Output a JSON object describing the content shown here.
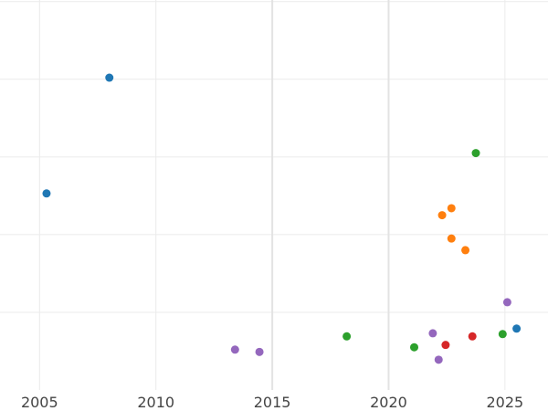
{
  "chart_data": {
    "type": "scatter",
    "title": "",
    "xlabel": "",
    "ylabel": "",
    "xlim": [
      2003.3,
      2026.85
    ],
    "ylim": [
      0,
      5.02
    ],
    "x_ticks": [
      2005,
      2010,
      2015,
      2020,
      2025
    ],
    "x_tick_labels": [
      "2005",
      "2010",
      "2015",
      "2020",
      "2025"
    ],
    "y_ticks": [
      1,
      2,
      3,
      4,
      5
    ],
    "y_tick_labels": [],
    "grid": true,
    "legend": "none",
    "series": [
      {
        "color": "#1f77b4",
        "points": [
          [
            2008.0,
            4.02
          ],
          [
            2005.3,
            2.53
          ],
          [
            2025.5,
            0.79
          ]
        ]
      },
      {
        "color": "#2ca02c",
        "points": [
          [
            2023.75,
            3.05
          ],
          [
            2018.2,
            0.69
          ],
          [
            2021.1,
            0.55
          ],
          [
            2024.9,
            0.72
          ]
        ]
      },
      {
        "color": "#ff7f0e",
        "points": [
          [
            2022.3,
            2.25
          ],
          [
            2022.7,
            2.34
          ],
          [
            2022.7,
            1.95
          ],
          [
            2023.3,
            1.8
          ]
        ]
      },
      {
        "color": "#d62728",
        "points": [
          [
            2022.45,
            0.58
          ],
          [
            2023.6,
            0.69
          ]
        ]
      },
      {
        "color": "#9467bd",
        "points": [
          [
            2013.4,
            0.52
          ],
          [
            2014.45,
            0.49
          ],
          [
            2021.9,
            0.73
          ],
          [
            2022.15,
            0.39
          ],
          [
            2025.1,
            1.13
          ]
        ]
      }
    ]
  }
}
